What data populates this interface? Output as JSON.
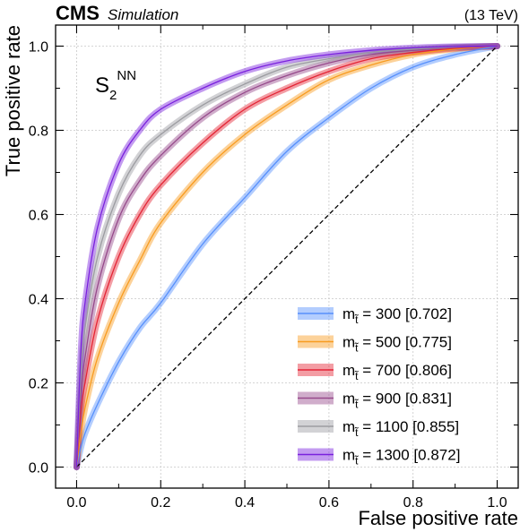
{
  "header": {
    "experiment": "CMS",
    "qualifier": "Simulation",
    "energy": "(13 TeV)"
  },
  "annotation": {
    "base": "S",
    "subscript": "2",
    "superscript": "NN"
  },
  "chart_data": {
    "type": "line",
    "xlabel": "False positive rate",
    "ylabel": "True positive rate",
    "xlim": [
      -0.05,
      1.05
    ],
    "ylim": [
      -0.05,
      1.05
    ],
    "xticks": [
      "0.0",
      "0.2",
      "0.4",
      "0.6",
      "0.8",
      "1.0"
    ],
    "yticks": [
      "0.0",
      "0.2",
      "0.4",
      "0.6",
      "0.8",
      "1.0"
    ],
    "grid": true,
    "legend_position": "bottom-right",
    "diagonal_reference": true,
    "series": [
      {
        "name": "m",
        "mass": "300",
        "auc": "[0.702]",
        "color": "#5790fc",
        "x": [
          0,
          0.01,
          0.02,
          0.05,
          0.1,
          0.15,
          0.2,
          0.3,
          0.4,
          0.5,
          0.6,
          0.7,
          0.8,
          0.9,
          1.0
        ],
        "y": [
          0,
          0.045,
          0.08,
          0.15,
          0.25,
          0.33,
          0.39,
          0.53,
          0.64,
          0.75,
          0.83,
          0.9,
          0.95,
          0.98,
          1.0
        ]
      },
      {
        "name": "m",
        "mass": "500",
        "auc": "[0.775]",
        "color": "#f89c20",
        "x": [
          0,
          0.01,
          0.02,
          0.05,
          0.1,
          0.15,
          0.2,
          0.3,
          0.4,
          0.5,
          0.6,
          0.7,
          0.8,
          0.9,
          1.0
        ],
        "y": [
          0,
          0.08,
          0.14,
          0.26,
          0.39,
          0.49,
          0.58,
          0.7,
          0.79,
          0.86,
          0.92,
          0.955,
          0.98,
          0.993,
          1.0
        ]
      },
      {
        "name": "m",
        "mass": "700",
        "auc": "[0.806]",
        "color": "#e42536",
        "x": [
          0,
          0.01,
          0.02,
          0.05,
          0.1,
          0.15,
          0.2,
          0.3,
          0.4,
          0.5,
          0.6,
          0.7,
          0.8,
          0.9,
          1.0
        ],
        "y": [
          0,
          0.13,
          0.2,
          0.35,
          0.5,
          0.6,
          0.67,
          0.77,
          0.85,
          0.9,
          0.94,
          0.97,
          0.985,
          0.995,
          1.0
        ]
      },
      {
        "name": "m",
        "mass": "900",
        "auc": "[0.831]",
        "color": "#964a8b",
        "x": [
          0,
          0.01,
          0.02,
          0.05,
          0.1,
          0.15,
          0.2,
          0.3,
          0.4,
          0.5,
          0.6,
          0.7,
          0.8,
          0.9,
          1.0
        ],
        "y": [
          0,
          0.17,
          0.26,
          0.43,
          0.59,
          0.68,
          0.74,
          0.83,
          0.89,
          0.93,
          0.96,
          0.98,
          0.99,
          0.997,
          1.0
        ]
      },
      {
        "name": "m",
        "mass": "1100",
        "auc": "[0.855]",
        "color": "#9c9ca1",
        "x": [
          0,
          0.01,
          0.02,
          0.05,
          0.1,
          0.15,
          0.2,
          0.3,
          0.4,
          0.5,
          0.6,
          0.7,
          0.8,
          0.9,
          1.0
        ],
        "y": [
          0,
          0.22,
          0.33,
          0.5,
          0.65,
          0.74,
          0.79,
          0.86,
          0.91,
          0.95,
          0.97,
          0.985,
          0.993,
          0.998,
          1.0
        ]
      },
      {
        "name": "m",
        "mass": "1300",
        "auc": "[0.872]",
        "color": "#7a21dd",
        "x": [
          0,
          0.01,
          0.02,
          0.05,
          0.1,
          0.15,
          0.2,
          0.3,
          0.4,
          0.5,
          0.6,
          0.7,
          0.8,
          0.9,
          1.0
        ],
        "y": [
          0,
          0.27,
          0.39,
          0.57,
          0.72,
          0.8,
          0.85,
          0.9,
          0.94,
          0.965,
          0.98,
          0.99,
          0.996,
          0.999,
          1.0
        ]
      }
    ]
  }
}
